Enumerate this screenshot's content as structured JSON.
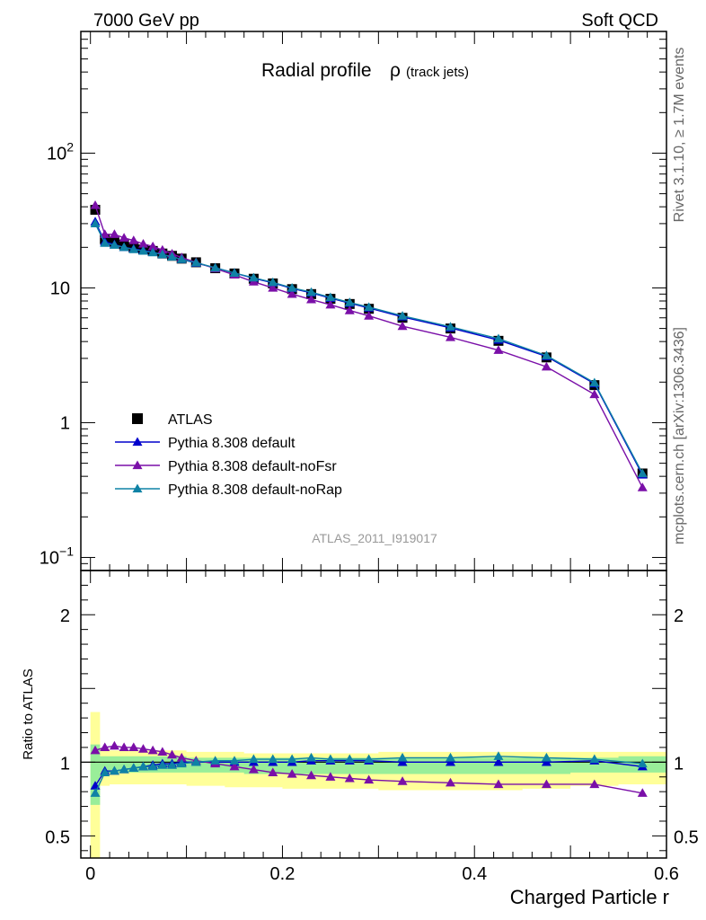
{
  "header": {
    "left": "7000 GeV pp",
    "right": "Soft QCD"
  },
  "side_text": {
    "rivet": "Rivet 3.1.10, ≥ 1.7M events",
    "mcplots": "mcplots.cern.ch [arXiv:1306.3436]"
  },
  "chart_data": [
    {
      "type": "line",
      "title_main": "Radial profile",
      "title_symbol": "ρ",
      "title_sub": "(track jets)",
      "watermark": "ATLAS_2011_I919017",
      "ylog": true,
      "ylim": [
        0.08,
        800
      ],
      "xlim": [
        -0.01,
        0.6
      ],
      "y_ticks": [
        {
          "value": 0.1,
          "base": "10",
          "exp": "−1"
        },
        {
          "value": 1,
          "label": "1"
        },
        {
          "value": 10,
          "label": "10"
        },
        {
          "value": 100,
          "base": "10",
          "exp": "2"
        }
      ],
      "legend": [
        "ATLAS",
        "Pythia 8.308 default",
        "Pythia 8.308 default-noFsr",
        "Pythia 8.308 default-noRap"
      ],
      "legend_placement": "middle-left",
      "x": [
        0.005,
        0.015,
        0.025,
        0.035,
        0.045,
        0.055,
        0.065,
        0.075,
        0.085,
        0.095,
        0.11,
        0.13,
        0.15,
        0.17,
        0.19,
        0.21,
        0.23,
        0.25,
        0.27,
        0.29,
        0.325,
        0.375,
        0.425,
        0.475,
        0.525,
        0.575
      ],
      "series": [
        {
          "name": "ATLAS",
          "color": "#000000",
          "marker": "square",
          "values": [
            38.0,
            23.0,
            22.0,
            21.0,
            20.0,
            19.3,
            18.8,
            18.0,
            17.3,
            16.5,
            15.5,
            14.0,
            12.8,
            11.7,
            10.8,
            9.8,
            9.0,
            8.3,
            7.6,
            7.0,
            6.0,
            5.0,
            4.05,
            3.05,
            1.9,
            0.42
          ]
        },
        {
          "name": "Pythia 8.308 default",
          "color": "#0000cc",
          "marker": "triangle",
          "values": [
            31.0,
            22.0,
            21.0,
            20.0,
            19.5,
            19.0,
            18.4,
            17.7,
            17.0,
            16.3,
            15.3,
            14.1,
            12.9,
            11.8,
            10.9,
            9.9,
            9.2,
            8.4,
            7.7,
            7.1,
            6.1,
            5.05,
            4.1,
            3.1,
            1.95,
            0.41
          ]
        },
        {
          "name": "Pythia 8.308 default-noFsr",
          "color": "#7a0fa8",
          "marker": "triangle",
          "values": [
            41.0,
            25.0,
            25.0,
            23.5,
            22.5,
            21.2,
            20.3,
            19.1,
            17.9,
            16.8,
            15.5,
            13.9,
            12.5,
            11.1,
            10.0,
            9.0,
            8.2,
            7.5,
            6.8,
            6.2,
            5.2,
            4.3,
            3.45,
            2.6,
            1.62,
            0.33
          ]
        },
        {
          "name": "Pythia 8.308 default-noRap",
          "color": "#0f82a5",
          "marker": "triangle",
          "values": [
            30.0,
            21.5,
            20.8,
            20.0,
            19.3,
            18.8,
            18.3,
            17.7,
            17.0,
            16.3,
            15.4,
            14.1,
            12.9,
            11.9,
            11.0,
            10.0,
            9.3,
            8.5,
            7.8,
            7.2,
            6.2,
            5.15,
            4.2,
            3.15,
            1.98,
            0.42
          ]
        }
      ]
    },
    {
      "type": "line",
      "ylabel": "Ratio to ATLAS",
      "xlabel": "Charged Particle r",
      "ylim": [
        0.35,
        2.3
      ],
      "xlim": [
        -0.01,
        0.6
      ],
      "x_ticks": [
        {
          "value": 0.0,
          "label": "0"
        },
        {
          "value": 0.2,
          "label": "0.2"
        },
        {
          "value": 0.4,
          "label": "0.4"
        },
        {
          "value": 0.6,
          "label": "0.6"
        }
      ],
      "y_ticks": [
        {
          "value": 0.5,
          "label": "0.5"
        },
        {
          "value": 1,
          "label": "1"
        },
        {
          "value": 2,
          "label": "2"
        }
      ],
      "bands": {
        "x_edges": [
          0.0,
          0.01,
          0.02,
          0.03,
          0.04,
          0.05,
          0.06,
          0.07,
          0.08,
          0.09,
          0.1,
          0.12,
          0.14,
          0.16,
          0.18,
          0.2,
          0.22,
          0.24,
          0.26,
          0.28,
          0.3,
          0.35,
          0.4,
          0.45,
          0.5,
          0.55,
          0.6
        ],
        "yellow_up": [
          1.34,
          1.09,
          1.08,
          1.08,
          1.08,
          1.08,
          1.08,
          1.08,
          1.08,
          1.08,
          1.07,
          1.07,
          1.07,
          1.06,
          1.06,
          1.06,
          1.06,
          1.06,
          1.06,
          1.06,
          1.07,
          1.07,
          1.07,
          1.07,
          1.07,
          1.07
        ],
        "yellow_down": [
          0.35,
          0.84,
          0.85,
          0.85,
          0.85,
          0.85,
          0.85,
          0.85,
          0.85,
          0.85,
          0.84,
          0.84,
          0.83,
          0.83,
          0.83,
          0.82,
          0.82,
          0.82,
          0.82,
          0.82,
          0.81,
          0.81,
          0.81,
          0.82,
          0.84,
          0.85
        ],
        "green_up": [
          1.12,
          1.04,
          1.04,
          1.04,
          1.04,
          1.04,
          1.04,
          1.04,
          1.04,
          1.04,
          1.03,
          1.03,
          1.03,
          1.03,
          1.03,
          1.03,
          1.03,
          1.03,
          1.03,
          1.03,
          1.03,
          1.03,
          1.03,
          1.03,
          1.03,
          1.04
        ],
        "green_down": [
          0.71,
          0.93,
          0.93,
          0.93,
          0.93,
          0.93,
          0.93,
          0.93,
          0.93,
          0.93,
          0.93,
          0.93,
          0.93,
          0.92,
          0.92,
          0.92,
          0.92,
          0.92,
          0.92,
          0.92,
          0.92,
          0.92,
          0.92,
          0.92,
          0.93,
          0.93
        ]
      },
      "series": [
        {
          "name": "Pythia 8.308 default",
          "color": "#0000cc",
          "values": [
            0.84,
            0.94,
            0.94,
            0.95,
            0.96,
            0.97,
            0.98,
            0.99,
            0.99,
            1.0,
            1.0,
            1.0,
            1.0,
            1.0,
            1.0,
            1.0,
            1.01,
            1.01,
            1.01,
            1.01,
            1.0,
            1.0,
            1.0,
            1.0,
            1.01,
            0.97
          ]
        },
        {
          "name": "Pythia 8.308 default-noFsr",
          "color": "#7a0fa8",
          "values": [
            1.08,
            1.1,
            1.11,
            1.1,
            1.1,
            1.09,
            1.08,
            1.07,
            1.05,
            1.03,
            1.01,
            0.99,
            0.97,
            0.95,
            0.93,
            0.92,
            0.91,
            0.9,
            0.89,
            0.88,
            0.87,
            0.86,
            0.85,
            0.85,
            0.85,
            0.79
          ]
        },
        {
          "name": "Pythia 8.308 default-noRap",
          "color": "#0f82a5",
          "values": [
            0.79,
            0.93,
            0.94,
            0.95,
            0.96,
            0.97,
            0.97,
            0.98,
            0.98,
            0.99,
            1.0,
            1.01,
            1.01,
            1.02,
            1.02,
            1.02,
            1.03,
            1.02,
            1.02,
            1.02,
            1.03,
            1.03,
            1.04,
            1.03,
            1.02,
            0.99
          ]
        }
      ]
    }
  ]
}
